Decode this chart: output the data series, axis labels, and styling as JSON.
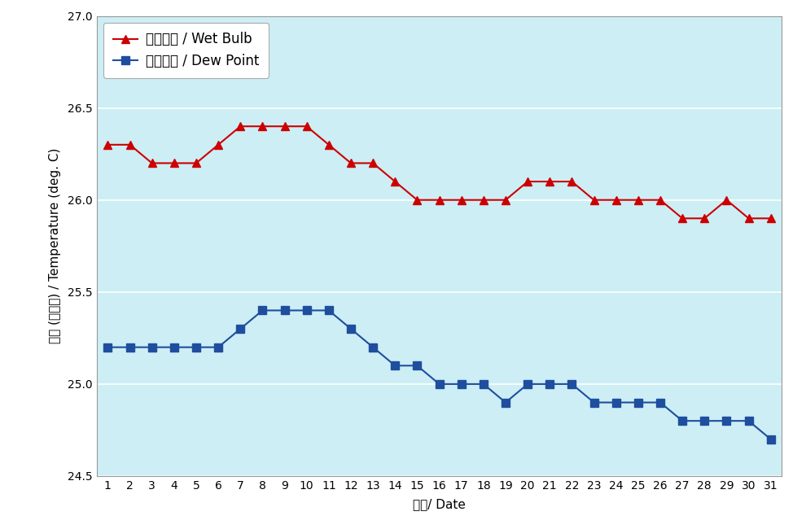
{
  "days": [
    1,
    2,
    3,
    4,
    5,
    6,
    7,
    8,
    9,
    10,
    11,
    12,
    13,
    14,
    15,
    16,
    17,
    18,
    19,
    20,
    21,
    22,
    23,
    24,
    25,
    26,
    27,
    28,
    29,
    30,
    31
  ],
  "wet_bulb": [
    26.3,
    26.3,
    26.2,
    26.2,
    26.2,
    26.3,
    26.4,
    26.4,
    26.4,
    26.4,
    26.3,
    26.2,
    26.2,
    26.1,
    26.0,
    26.0,
    26.0,
    26.0,
    26.0,
    26.1,
    26.1,
    26.1,
    26.0,
    26.0,
    26.0,
    26.0,
    25.9,
    25.9,
    26.0,
    25.9,
    25.9
  ],
  "dew_point": [
    25.2,
    25.2,
    25.2,
    25.2,
    25.2,
    25.2,
    25.3,
    25.4,
    25.4,
    25.4,
    25.4,
    25.3,
    25.2,
    25.1,
    25.1,
    25.0,
    25.0,
    25.0,
    24.9,
    25.0,
    25.0,
    25.0,
    24.9,
    24.9,
    24.9,
    24.9,
    24.8,
    24.8,
    24.8,
    24.8,
    24.7
  ],
  "wet_bulb_color": "#cc0000",
  "dew_point_color": "#1f4e9e",
  "background_color": "#cdeef5",
  "outer_bg_color": "#ffffff",
  "ylabel": "溫度 (攝氏度) / Temperature (deg. C)",
  "xlabel": "日期/ Date",
  "legend_wet_bulb": "溪球溫度 / Wet Bulb",
  "legend_dew_point": "露點溫度 / Dew Point",
  "ylim": [
    24.5,
    27.0
  ],
  "yticks": [
    24.5,
    25.0,
    25.5,
    26.0,
    26.5,
    27.0
  ],
  "axis_fontsize": 11,
  "legend_fontsize": 12,
  "tick_fontsize": 10,
  "grid_color": "#a0d0e0",
  "grid_linewidth": 0.8
}
